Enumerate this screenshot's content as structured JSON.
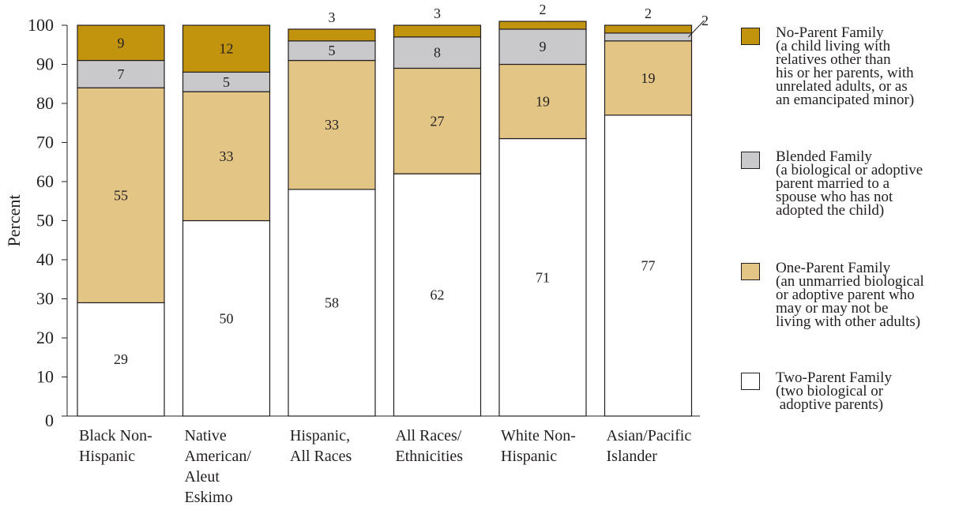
{
  "chart_data": {
    "type": "bar",
    "stacked": true,
    "ylabel": "Percent",
    "ylim": [
      0,
      100
    ],
    "yticks": [
      0,
      10,
      20,
      30,
      40,
      50,
      60,
      70,
      80,
      90,
      100
    ],
    "categories": [
      "Black Non-\nHispanic",
      "Native\nAmerican/\nAleut\nEskimo",
      "Hispanic,\nAll Races",
      "All Races/\nEthnicities",
      "White Non-\nHispanic",
      "Asian/Pacific\nIslander"
    ],
    "series": [
      {
        "name": "Two-Parent Family",
        "color": "#ffffff",
        "values": [
          29,
          50,
          58,
          62,
          71,
          77
        ]
      },
      {
        "name": "One-Parent Family",
        "color": "#e3c585",
        "values": [
          55,
          33,
          33,
          27,
          19,
          19
        ]
      },
      {
        "name": "Blended Family",
        "color": "#c9c9cb",
        "values": [
          7,
          5,
          5,
          8,
          9,
          2
        ]
      },
      {
        "name": "No-Parent Family",
        "color": "#c2930c",
        "values": [
          9,
          12,
          3,
          3,
          2,
          2
        ]
      }
    ],
    "legend_placement": "right"
  },
  "legend": [
    {
      "title": "No-Parent Family",
      "desc": "(a child living with\nrelatives other than\nhis or her parents, with\nunrelated adults, or as\nan emancipated minor)",
      "color": "#c2930c"
    },
    {
      "title": "Blended Family",
      "desc": "(a biological or adoptive\nparent married to a\nspouse who has not\nadopted the child)",
      "color": "#c9c9cb"
    },
    {
      "title": "One-Parent Family",
      "desc": "(an unmarried biological\nor adoptive parent who\nmay or may not be\nliving with other adults)",
      "color": "#e3c585"
    },
    {
      "title": "Two-Parent Family",
      "desc": "(two biological or\n adoptive parents)",
      "color": "#ffffff"
    }
  ]
}
